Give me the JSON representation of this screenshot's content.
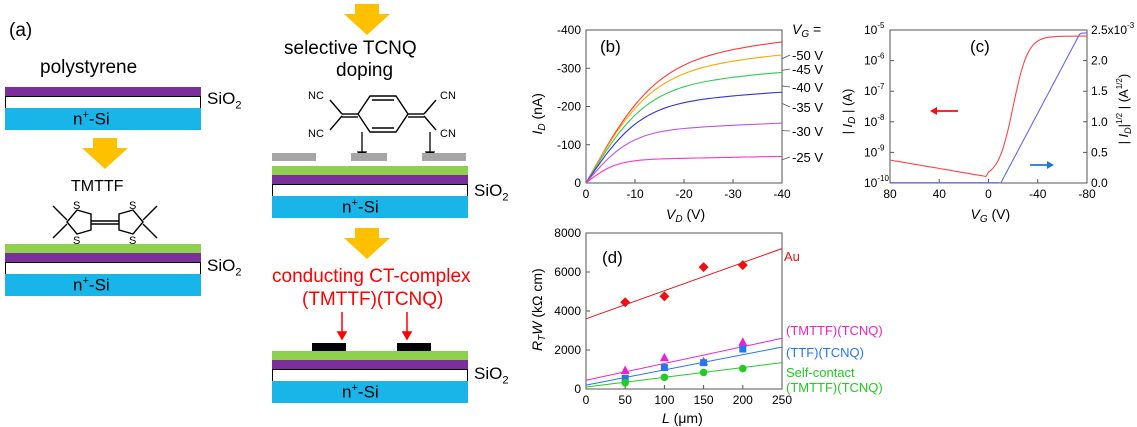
{
  "panel_labels": {
    "a": "(a)",
    "b": "(b)",
    "c": "(c)",
    "d": "(d)"
  },
  "schematic": {
    "polystyrene": "polystyrene",
    "sio2": "SiO",
    "sio2_sub": "2",
    "nsi_n": "n",
    "nsi_plus": "+",
    "nsi_rest": "-Si",
    "tmttf": "TMTTF",
    "selective_line1": "selective TCNQ",
    "selective_line2": "doping",
    "cn": "CN",
    "nc": "NC",
    "ct_line1": "conducting CT-complex",
    "ct_line2": "(TMTTF)(TCNQ)",
    "colors": {
      "purple": "#7a2f9b",
      "blue": "#19b4e8",
      "green": "#8fd14f",
      "gray": "#a6a6a6",
      "arrow": "#ffc000",
      "red_text": "#ff0000"
    }
  },
  "chart_data": [
    {
      "panel": "(b)",
      "type": "line",
      "xlabel_var": "V",
      "xlabel_sub": "D",
      "xlabel_unit": "(V)",
      "ylabel_var": "I",
      "ylabel_sub": "D",
      "ylabel_unit": "(nA)",
      "xlim": [
        0,
        -40
      ],
      "ylim": [
        0,
        -400
      ],
      "xticks": [
        "0",
        "-10",
        "-20",
        "-30",
        "-40"
      ],
      "yticks": [
        "0",
        "-100",
        "-200",
        "-300",
        "-400"
      ],
      "legend_title_var": "V",
      "legend_title_sub": "G",
      "legend_title_eq": " =",
      "series": [
        {
          "name": "-50 V",
          "color": "#ff3b3b",
          "sat": -320,
          "vk": 14
        },
        {
          "name": "-45 V",
          "color": "#ffa500",
          "sat": -290,
          "vk": 13
        },
        {
          "name": "-40 V",
          "color": "#33cc55",
          "sat": -250,
          "vk": 12
        },
        {
          "name": "-35 V",
          "color": "#3333dd",
          "sat": -205,
          "vk": 11
        },
        {
          "name": "-30 V",
          "color": "#bb55ee",
          "sat": -135,
          "vk": 9
        },
        {
          "name": "-25 V",
          "color": "#ff33cc",
          "sat": -60,
          "vk": 6
        }
      ]
    },
    {
      "panel": "(c)",
      "type": "line",
      "xlabel_var": "V",
      "xlabel_sub": "G",
      "xlabel_unit": "(V)",
      "ylabel_left": "| I",
      "ylabel_left_sub": "D",
      "ylabel_left_unit": " | (A)",
      "ylabel_right": "| I",
      "ylabel_right_sub": "D",
      "ylabel_right_sup": "1/2",
      "ylabel_right_unit": "| (A",
      "ylabel_right_unit_sup": "1/2",
      "ylabel_right_close": ")",
      "xlim": [
        80,
        -80
      ],
      "xticks": [
        "80",
        "40",
        "0",
        "-40",
        "-80"
      ],
      "yticks_left": [
        "10",
        "10",
        "10",
        "10",
        "10",
        "10"
      ],
      "yticks_left_exp": [
        "-10",
        "-9",
        "-8",
        "-7",
        "-6",
        "-5"
      ],
      "yticks_right": [
        "0.0",
        "0.5",
        "1.0",
        "1.5",
        "2.0",
        "2.5x10"
      ],
      "yticks_right_last_exp": "-3",
      "log_scale_left": true,
      "series": [
        {
          "name": "|ID| (log)",
          "color": "#ff4444",
          "axis": "left"
        },
        {
          "name": "|ID|^1/2",
          "color": "#6666ee",
          "axis": "right"
        }
      ]
    },
    {
      "panel": "(d)",
      "type": "scatter",
      "xlabel_var": "L",
      "xlabel_unit": " (μm)",
      "ylabel_var": "R",
      "ylabel_sub": "T",
      "ylabel_var2": "W",
      "ylabel_unit": " (kΩ cm)",
      "xlim": [
        0,
        250
      ],
      "ylim": [
        0,
        8000
      ],
      "xticks": [
        "0",
        "50",
        "100",
        "150",
        "200",
        "250"
      ],
      "yticks": [
        "0",
        "2000",
        "4000",
        "6000",
        "8000"
      ],
      "x": [
        50,
        100,
        150,
        200
      ],
      "series": [
        {
          "name": "Au",
          "color": "#ee1111",
          "marker": "diamond",
          "values": [
            4450,
            4750,
            6250,
            6350
          ],
          "fit": [
            3600,
            7200
          ]
        },
        {
          "name": "(TMTTF)(TCNQ)",
          "color": "#ee22cc",
          "marker": "triangle",
          "values": [
            950,
            1600,
            1400,
            2400
          ],
          "fit": [
            450,
            2600
          ]
        },
        {
          "name": "(TTF)(TCNQ)",
          "color": "#2277ee",
          "marker": "square",
          "values": [
            550,
            1100,
            1350,
            2050
          ],
          "fit": [
            200,
            2150
          ]
        },
        {
          "name": "Self-contact",
          "name2": "(TMTTF)(TCNQ)",
          "color": "#22cc22",
          "marker": "circle",
          "values": [
            320,
            600,
            850,
            1050
          ],
          "fit": [
            100,
            1350
          ]
        }
      ]
    }
  ]
}
